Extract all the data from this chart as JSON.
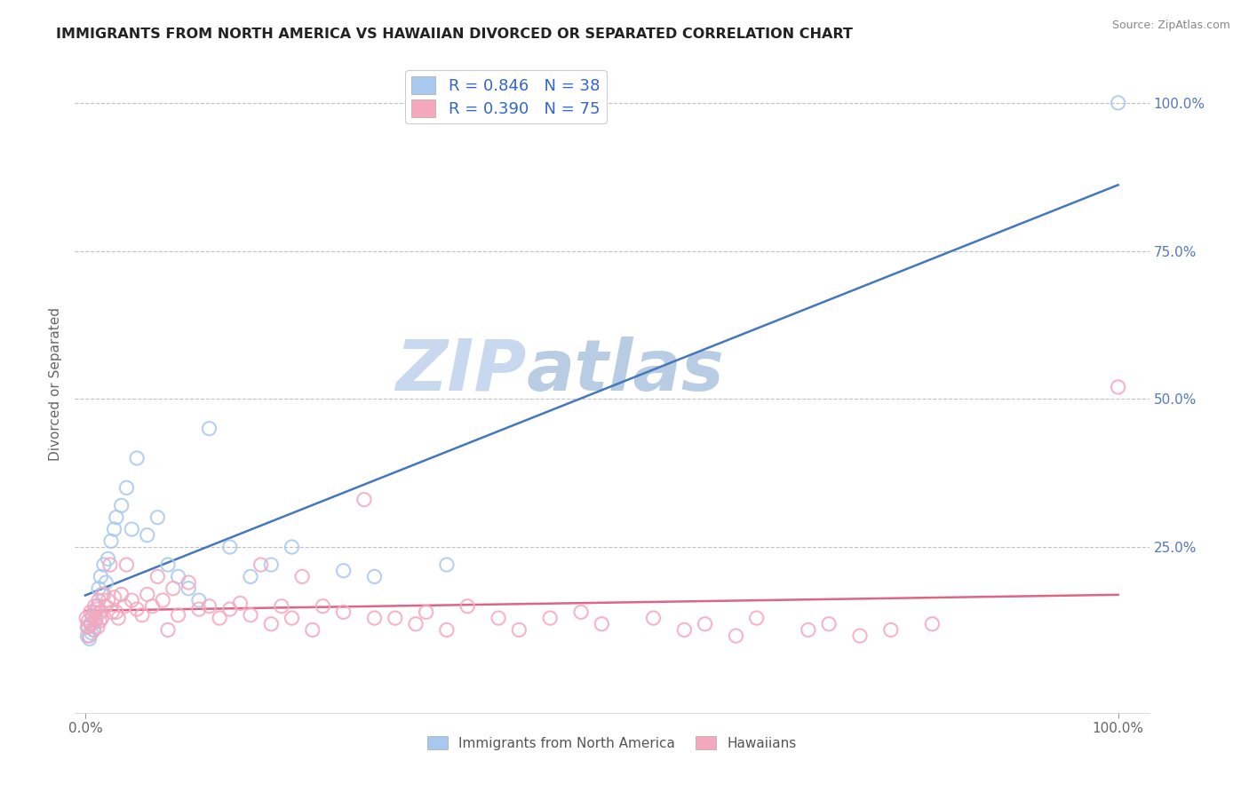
{
  "title": "IMMIGRANTS FROM NORTH AMERICA VS HAWAIIAN DIVORCED OR SEPARATED CORRELATION CHART",
  "source": "Source: ZipAtlas.com",
  "ylabel": "Divorced or Separated",
  "watermark": "ZIPatlas",
  "legend_label1": "Immigrants from North America",
  "legend_label2": "Hawaiians",
  "R1": "0.846",
  "N1": "38",
  "R2": "0.390",
  "N2": "75",
  "color1": "#a8c8f0",
  "color2": "#f4a8be",
  "line_color1": "#4477bb",
  "line_color2": "#dd6688",
  "scatter1_x": [
    0.2,
    0.3,
    0.4,
    0.5,
    0.6,
    0.7,
    0.8,
    0.9,
    1.0,
    1.2,
    1.3,
    1.5,
    1.6,
    1.8,
    2.0,
    2.2,
    2.5,
    2.8,
    3.0,
    3.5,
    4.0,
    4.5,
    5.0,
    6.0,
    7.0,
    8.0,
    9.0,
    10.0,
    11.0,
    12.0,
    14.0,
    16.0,
    18.0,
    20.0,
    25.0,
    28.0,
    35.0,
    100.0
  ],
  "scatter1_y": [
    10.0,
    11.5,
    9.5,
    12.0,
    10.5,
    13.0,
    11.0,
    14.0,
    12.5,
    15.0,
    18.0,
    20.0,
    17.0,
    22.0,
    19.0,
    23.0,
    26.0,
    28.0,
    30.0,
    32.0,
    35.0,
    28.0,
    40.0,
    27.0,
    30.0,
    22.0,
    20.0,
    18.0,
    16.0,
    45.0,
    25.0,
    20.0,
    22.0,
    25.0,
    21.0,
    20.0,
    22.0,
    100.0
  ],
  "scatter2_x": [
    0.1,
    0.2,
    0.3,
    0.4,
    0.5,
    0.6,
    0.7,
    0.8,
    0.9,
    1.0,
    1.1,
    1.2,
    1.3,
    1.4,
    1.5,
    1.6,
    1.8,
    2.0,
    2.2,
    2.4,
    2.6,
    2.8,
    3.0,
    3.2,
    3.5,
    3.8,
    4.0,
    4.5,
    5.0,
    5.5,
    6.0,
    6.5,
    7.0,
    7.5,
    8.0,
    8.5,
    9.0,
    10.0,
    11.0,
    12.0,
    13.0,
    14.0,
    15.0,
    16.0,
    17.0,
    18.0,
    19.0,
    20.0,
    21.0,
    22.0,
    23.0,
    25.0,
    27.0,
    28.0,
    30.0,
    32.0,
    33.0,
    35.0,
    37.0,
    40.0,
    42.0,
    45.0,
    48.0,
    50.0,
    55.0,
    58.0,
    60.0,
    63.0,
    65.0,
    70.0,
    72.0,
    75.0,
    78.0,
    82.0,
    100.0
  ],
  "scatter2_y": [
    13.0,
    11.5,
    12.5,
    10.0,
    14.0,
    12.0,
    13.5,
    11.0,
    15.0,
    13.0,
    14.5,
    11.5,
    16.0,
    12.5,
    14.0,
    13.0,
    17.0,
    15.0,
    16.0,
    22.0,
    14.0,
    16.5,
    14.0,
    13.0,
    17.0,
    15.0,
    22.0,
    16.0,
    14.5,
    13.5,
    17.0,
    15.0,
    20.0,
    16.0,
    11.0,
    18.0,
    13.5,
    19.0,
    14.5,
    15.0,
    13.0,
    14.5,
    15.5,
    13.5,
    22.0,
    12.0,
    15.0,
    13.0,
    20.0,
    11.0,
    15.0,
    14.0,
    33.0,
    13.0,
    13.0,
    12.0,
    14.0,
    11.0,
    15.0,
    13.0,
    11.0,
    13.0,
    14.0,
    12.0,
    13.0,
    11.0,
    12.0,
    10.0,
    13.0,
    11.0,
    12.0,
    10.0,
    11.0,
    12.0,
    52.0
  ],
  "background_color": "#ffffff",
  "grid_color": "#bbbbbb",
  "title_color": "#222222",
  "watermark_color": "#dde8f5",
  "legend_text_color": "#3366cc"
}
